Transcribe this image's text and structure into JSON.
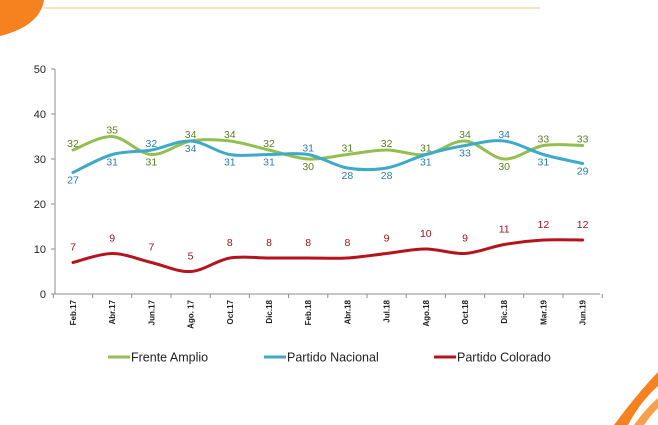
{
  "chart_data": {
    "type": "line",
    "categories": [
      "Feb.17",
      "Abr.17",
      "Jun.17",
      "Ago. 17",
      "Oct.17",
      "Dic.18",
      "Feb.18",
      "Abr.18",
      "Jul.18",
      "Ago.18",
      "Oct.18",
      "Dic.18",
      "Mar.19",
      "Jun.19"
    ],
    "ylim": [
      0,
      50
    ],
    "yticks": [
      0,
      10,
      20,
      30,
      40,
      50
    ],
    "grid": false,
    "legend_position": "bottom",
    "series": [
      {
        "name": "Frente Amplio",
        "color": "#93bf4f",
        "values": [
          32,
          35,
          31,
          34,
          34,
          32,
          30,
          31,
          32,
          31,
          34,
          30,
          33,
          33
        ]
      },
      {
        "name": "Partido Nacional",
        "color": "#3fa9c9",
        "values": [
          27,
          31,
          32,
          34,
          31,
          31,
          31,
          28,
          28,
          31,
          33,
          34,
          31,
          29
        ]
      },
      {
        "name": "Partido Colorado",
        "color": "#b5141d",
        "values": [
          7,
          9,
          7,
          5,
          8,
          8,
          8,
          8,
          9,
          10,
          9,
          11,
          12,
          12
        ]
      }
    ]
  },
  "theme": {
    "accent_orange": "#f5821f",
    "header_line": "#f3c47e",
    "axis": "#8c8c8c"
  }
}
